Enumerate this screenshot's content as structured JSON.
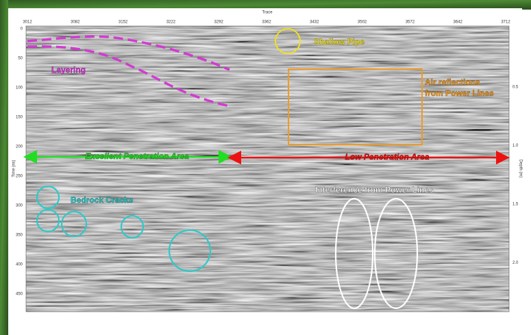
{
  "axes": {
    "top_title": "Trace",
    "top_ticks": [
      "3012",
      "3082",
      "3152",
      "3222",
      "3292",
      "3362",
      "3432",
      "3502",
      "3572",
      "3642",
      "3712"
    ],
    "left_title": "Time (ns)",
    "left_ticks": [
      "0",
      "50",
      "100",
      "150",
      "200",
      "250",
      "300",
      "350",
      "400",
      "450"
    ],
    "right_title": "Depth (m)",
    "right_ticks": [
      "0.5",
      "1.0",
      "1.5",
      "2.0"
    ]
  },
  "annotations": {
    "layering": "Layering",
    "shallow_pipe": "Shallow Pipe",
    "air_reflections": [
      "Air reflections",
      "from Power Lines"
    ],
    "excellent_area": "Excellent Penetration Area",
    "low_area": "Low Penetration Area",
    "bedrock_cracks": "Bedrock Cracks",
    "interference": "Interference from Power Lines"
  }
}
